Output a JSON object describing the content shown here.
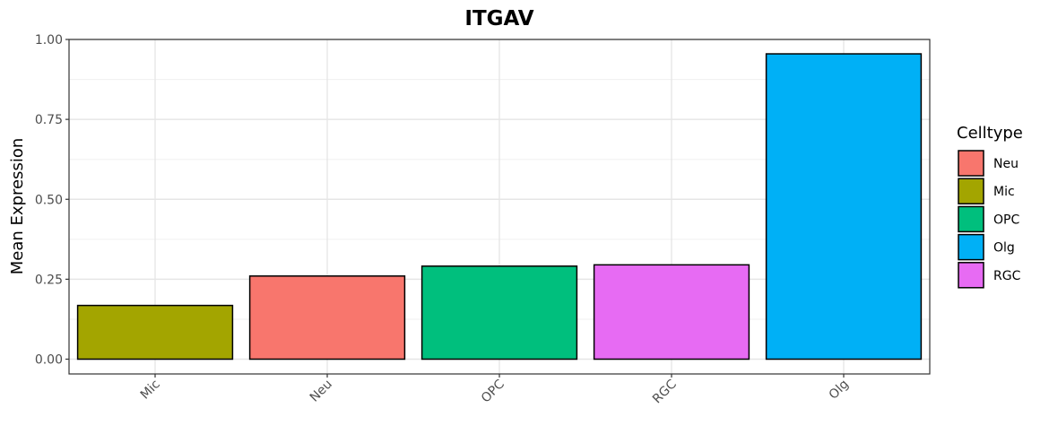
{
  "chart_data": {
    "type": "bar",
    "title": "ITGAV",
    "xlabel": "",
    "ylabel": "Mean Expression",
    "ylim": [
      -0.045,
      1.0
    ],
    "yticks": [
      "0.00",
      "0.25",
      "0.50",
      "0.75",
      "1.00"
    ],
    "categories": [
      "Mic",
      "Neu",
      "OPC",
      "RGC",
      "Olg"
    ],
    "values": [
      0.168,
      0.26,
      0.291,
      0.295,
      0.955
    ],
    "bar_celltypes": [
      "Mic",
      "Neu",
      "OPC",
      "RGC",
      "Olg"
    ],
    "grid": true,
    "legend": {
      "title": "Celltype",
      "placement": "right",
      "entries": [
        {
          "label": "Neu",
          "color": "#F8766D"
        },
        {
          "label": "Mic",
          "color": "#A3A500"
        },
        {
          "label": "OPC",
          "color": "#00BF7D"
        },
        {
          "label": "Olg",
          "color": "#00B0F6"
        },
        {
          "label": "RGC",
          "color": "#E76BF3"
        }
      ]
    }
  }
}
